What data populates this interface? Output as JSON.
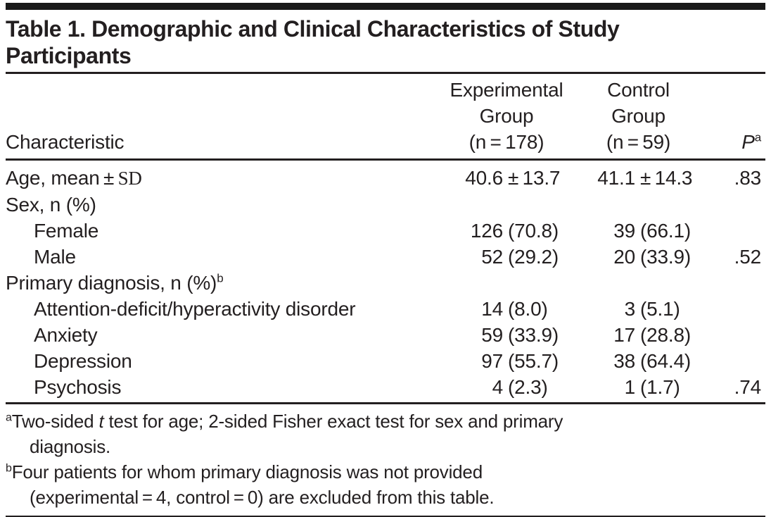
{
  "title": "Table 1. Demographic and Clinical Characteristics of Study\nParticipants",
  "header": {
    "characteristic": "Characteristic",
    "experimental": "Experimental\nGroup\n(n = 178)",
    "control": "Control\nGroup\n(n = 59)",
    "p_label": "P",
    "p_sup": "a"
  },
  "rows": [
    {
      "label": "Age, mean ± ",
      "label_serif": "SD",
      "exp_n": "40.6",
      "exp_rest": "± 13.7",
      "ctl_n": "41.1",
      "ctl_rest": "± 14.3",
      "p": ".83"
    },
    {
      "label": "Sex, n (%)"
    },
    {
      "label": "Female",
      "exp_n": "126",
      "exp_rest": "(70.8)",
      "ctl_n": "39",
      "ctl_rest": "(66.1)"
    },
    {
      "label": "Male",
      "exp_n": "52",
      "exp_rest": "(29.2)",
      "ctl_n": "20",
      "ctl_rest": "(33.9)",
      "p": ".52"
    },
    {
      "label": "Primary diagnosis, n (%)",
      "label_sup": "b"
    },
    {
      "label": "Attention-deficit/hyperactivity disorder",
      "exp_n": "14",
      "exp_rest": "(8.0)",
      "ctl_n": "3",
      "ctl_rest": "(5.1)"
    },
    {
      "label": "Anxiety",
      "exp_n": "59",
      "exp_rest": "(33.9)",
      "ctl_n": "17",
      "ctl_rest": "(28.8)"
    },
    {
      "label": "Depression",
      "exp_n": "97",
      "exp_rest": "(55.7)",
      "ctl_n": "38",
      "ctl_rest": "(64.4)"
    },
    {
      "label": "Psychosis",
      "exp_n": "4",
      "exp_rest": "(2.3)",
      "ctl_n": "1",
      "ctl_rest": "(1.7)",
      "p": ".74"
    }
  ],
  "footnotes": {
    "a": {
      "sup": "a",
      "pre": "Two-sided ",
      "italic": "t",
      "post": " test for age; 2-sided Fisher exact test for sex and primary\ndiagnosis."
    },
    "b": {
      "sup": "b",
      "text": "Four patients for whom primary diagnosis was not provided\n(experimental = 4, control = 0) are excluded from this table."
    }
  },
  "colors": {
    "text": "#231f20",
    "rule": "#231f20",
    "top_bar": "#1a1a1a",
    "background": "#ffffff"
  },
  "chart_data": {
    "type": "table",
    "title": "Table 1. Demographic and Clinical Characteristics of Study Participants",
    "columns": [
      "Characteristic",
      "Experimental Group (n = 178)",
      "Control Group (n = 59)",
      "P"
    ],
    "rows": [
      [
        "Age, mean ± SD",
        "40.6 ± 13.7",
        "41.1 ± 14.3",
        ".83"
      ],
      [
        "Sex, n (%)",
        "",
        "",
        ""
      ],
      [
        "Female",
        "126 (70.8)",
        "39 (66.1)",
        ""
      ],
      [
        "Male",
        "52 (29.2)",
        "20 (33.9)",
        ".52"
      ],
      [
        "Primary diagnosis, n (%)",
        "",
        "",
        ""
      ],
      [
        "Attention-deficit/hyperactivity disorder",
        "14 (8.0)",
        "3 (5.1)",
        ""
      ],
      [
        "Anxiety",
        "59 (33.9)",
        "17 (28.8)",
        ""
      ],
      [
        "Depression",
        "97 (55.7)",
        "38 (64.4)",
        ""
      ],
      [
        "Psychosis",
        "4 (2.3)",
        "1 (1.7)",
        ".74"
      ]
    ]
  }
}
